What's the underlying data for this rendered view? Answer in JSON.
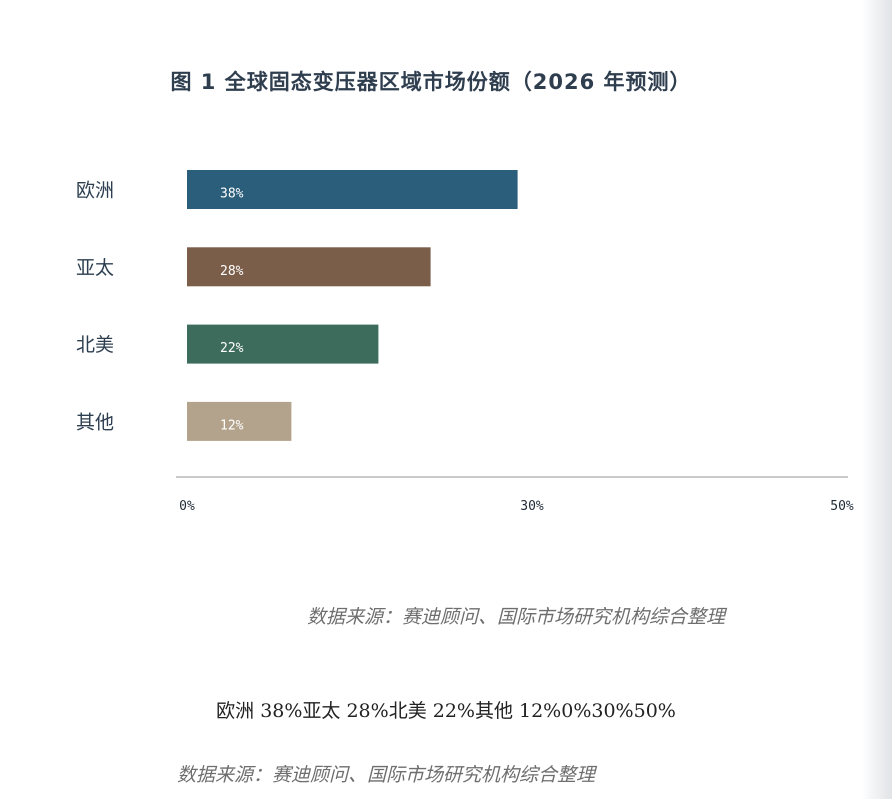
{
  "title": "图 1 全球固态变压器区域市场份额（2026 年预测）",
  "chart_data": {
    "type": "bar",
    "orientation": "horizontal",
    "categories": [
      "欧洲",
      "亚太",
      "北美",
      "其他"
    ],
    "values": [
      38,
      28,
      22,
      12
    ],
    "value_labels": [
      "38%",
      "28%",
      "22%",
      "12%"
    ],
    "colors": [
      "#2b5e7a",
      "#7b5e4a",
      "#3d6b5c",
      "#b3a38c"
    ],
    "x_ticks": [
      {
        "value": 0,
        "label": "0%"
      },
      {
        "value": 30,
        "label": "30%"
      },
      {
        "value": 50,
        "label": "50%"
      }
    ],
    "xlim": [
      0,
      50
    ],
    "xlabel": "",
    "ylabel": "",
    "grid": false,
    "legend": "none"
  },
  "source_text": "数据来源：赛迪顾问、国际市场研究机构综合整理",
  "fallback_text": "欧洲 38%亚太 28%北美 22%其他 12%0%30%50%",
  "source_text_2": "数据来源：赛迪顾问、国际市场研究机构综合整理"
}
